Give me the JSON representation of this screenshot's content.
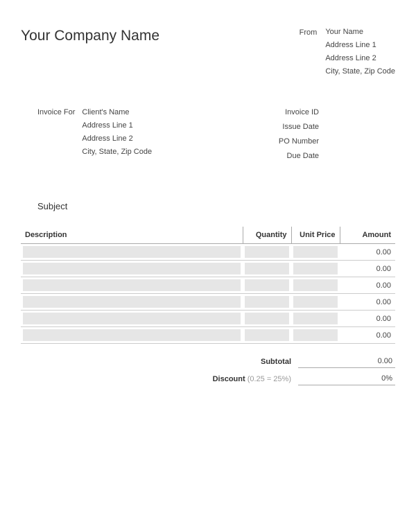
{
  "company_name": "Your Company Name",
  "from": {
    "label": "From",
    "name": "Your Name",
    "address1": "Address Line 1",
    "address2": "Address Line 2",
    "city_state_zip": "City, State, Zip Code"
  },
  "invoice_for": {
    "label": "Invoice For",
    "name": "Client's Name",
    "address1": "Address Line 1",
    "address2": "Address Line 2",
    "city_state_zip": "City, State, Zip Code"
  },
  "meta": {
    "invoice_id_label": "Invoice ID",
    "issue_date_label": "Issue Date",
    "po_number_label": "PO Number",
    "due_date_label": "Due Date"
  },
  "subject_label": "Subject",
  "table": {
    "columns": {
      "description": "Description",
      "quantity": "Quantity",
      "unit_price": "Unit Price",
      "amount": "Amount"
    },
    "rows": [
      {
        "amount": "0.00"
      },
      {
        "amount": "0.00"
      },
      {
        "amount": "0.00"
      },
      {
        "amount": "0.00"
      },
      {
        "amount": "0.00"
      },
      {
        "amount": "0.00"
      }
    ],
    "row_shade_color": "#e6e6e6",
    "border_color": "#cccccc",
    "header_border_color": "#aaaaaa"
  },
  "totals": {
    "subtotal_label": "Subtotal",
    "subtotal_value": "0.00",
    "discount_label": "Discount",
    "discount_hint": "(0.25 = 25%)",
    "discount_value": "0%"
  },
  "colors": {
    "background": "#ffffff",
    "text_primary": "#333333",
    "text_secondary": "#444444",
    "text_muted": "#999999"
  }
}
